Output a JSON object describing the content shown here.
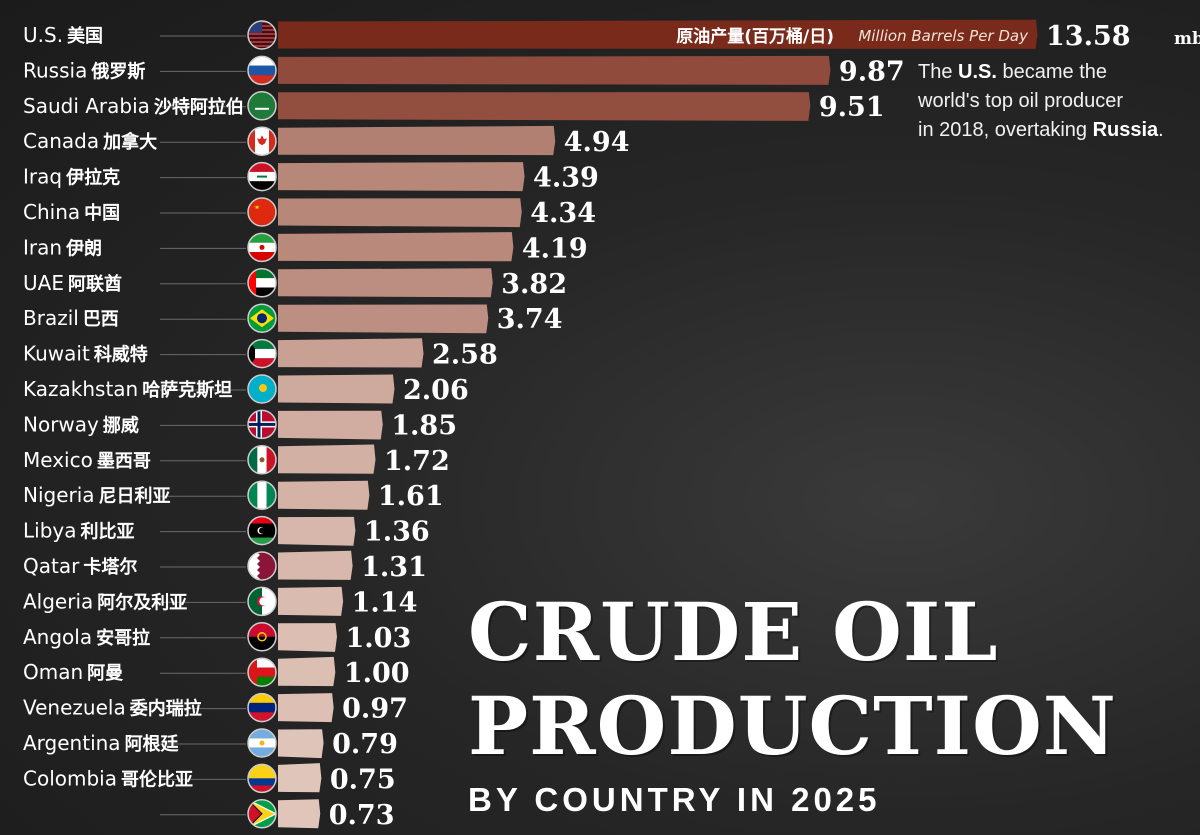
{
  "chart_data": {
    "type": "bar",
    "orientation": "horizontal",
    "title_lines": [
      "CRUDE OIL",
      "PRODUCTION"
    ],
    "subtitle": "BY COUNTRY IN 2025",
    "bar_caption_cn": "原油产量(百万桶/日)",
    "bar_caption_en": "Million Barrels Per Day",
    "unit": "mb/d",
    "xlim": [
      0,
      13.58
    ],
    "categories": [
      {
        "name": "U.S.",
        "name_cn": "美国",
        "flag": "us-flag-icon",
        "value": 13.58,
        "label": "13.58"
      },
      {
        "name": "Russia",
        "name_cn": "俄罗斯",
        "flag": "russia-flag-icon",
        "value": 9.87,
        "label": "9.87"
      },
      {
        "name": "Saudi Arabia",
        "name_cn": "沙特阿拉伯",
        "flag": "saudi-arabia-flag-icon",
        "value": 9.51,
        "label": "9.51"
      },
      {
        "name": "Canada",
        "name_cn": "加拿大",
        "flag": "canada-flag-icon",
        "value": 4.94,
        "label": "4.94"
      },
      {
        "name": "Iraq",
        "name_cn": "伊拉克",
        "flag": "iraq-flag-icon",
        "value": 4.39,
        "label": "4.39"
      },
      {
        "name": "China",
        "name_cn": "中国",
        "flag": "china-flag-icon",
        "value": 4.34,
        "label": "4.34"
      },
      {
        "name": "Iran",
        "name_cn": "伊朗",
        "flag": "iran-flag-icon",
        "value": 4.19,
        "label": "4.19"
      },
      {
        "name": "UAE",
        "name_cn": "阿联酋",
        "flag": "uae-flag-icon",
        "value": 3.82,
        "label": "3.82"
      },
      {
        "name": "Brazil",
        "name_cn": "巴西",
        "flag": "brazil-flag-icon",
        "value": 3.74,
        "label": "3.74"
      },
      {
        "name": "Kuwait",
        "name_cn": "科威特",
        "flag": "kuwait-flag-icon",
        "value": 2.58,
        "label": "2.58"
      },
      {
        "name": "Kazakhstan",
        "name_cn": "哈萨克斯坦",
        "flag": "kazakhstan-flag-icon",
        "value": 2.06,
        "label": "2.06"
      },
      {
        "name": "Norway",
        "name_cn": "挪威",
        "flag": "norway-flag-icon",
        "value": 1.85,
        "label": "1.85"
      },
      {
        "name": "Mexico",
        "name_cn": "墨西哥",
        "flag": "mexico-flag-icon",
        "value": 1.72,
        "label": "1.72"
      },
      {
        "name": "Nigeria",
        "name_cn": "尼日利亚",
        "flag": "nigeria-flag-icon",
        "value": 1.61,
        "label": "1.61"
      },
      {
        "name": "Libya",
        "name_cn": "利比亚",
        "flag": "libya-flag-icon",
        "value": 1.36,
        "label": "1.36"
      },
      {
        "name": "Qatar",
        "name_cn": "卡塔尔",
        "flag": "qatar-flag-icon",
        "value": 1.31,
        "label": "1.31"
      },
      {
        "name": "Algeria",
        "name_cn": "阿尔及利亚",
        "flag": "algeria-flag-icon",
        "value": 1.14,
        "label": "1.14"
      },
      {
        "name": "Angola",
        "name_cn": "安哥拉",
        "flag": "angola-flag-icon",
        "value": 1.03,
        "label": "1.03"
      },
      {
        "name": "Oman",
        "name_cn": "阿曼",
        "flag": "oman-flag-icon",
        "value": 1.0,
        "label": "1.00"
      },
      {
        "name": "Venezuela",
        "name_cn": "委内瑞拉",
        "flag": "venezuela-flag-icon",
        "value": 0.97,
        "label": "0.97"
      },
      {
        "name": "Argentina",
        "name_cn": "阿根廷",
        "flag": "argentina-flag-icon",
        "value": 0.79,
        "label": "0.79"
      },
      {
        "name": "Colombia",
        "name_cn": "哥伦比亚",
        "flag": "colombia-flag-icon",
        "value": 0.75,
        "label": "0.75"
      },
      {
        "name": "",
        "name_cn": "",
        "flag": "guyana-flag-icon",
        "value": 0.73,
        "label": "0.73"
      }
    ],
    "colors": {
      "top": "#7a2a1a",
      "bottom": "#f6e6dc"
    }
  },
  "annotation": {
    "line1_pre": "The ",
    "line1_bold": "U.S.",
    "line1_post": " became the",
    "line2": "world's top oil producer",
    "line3_pre": "in 2018, overtaking ",
    "line3_bold": "Russia",
    "line3_post": "."
  }
}
